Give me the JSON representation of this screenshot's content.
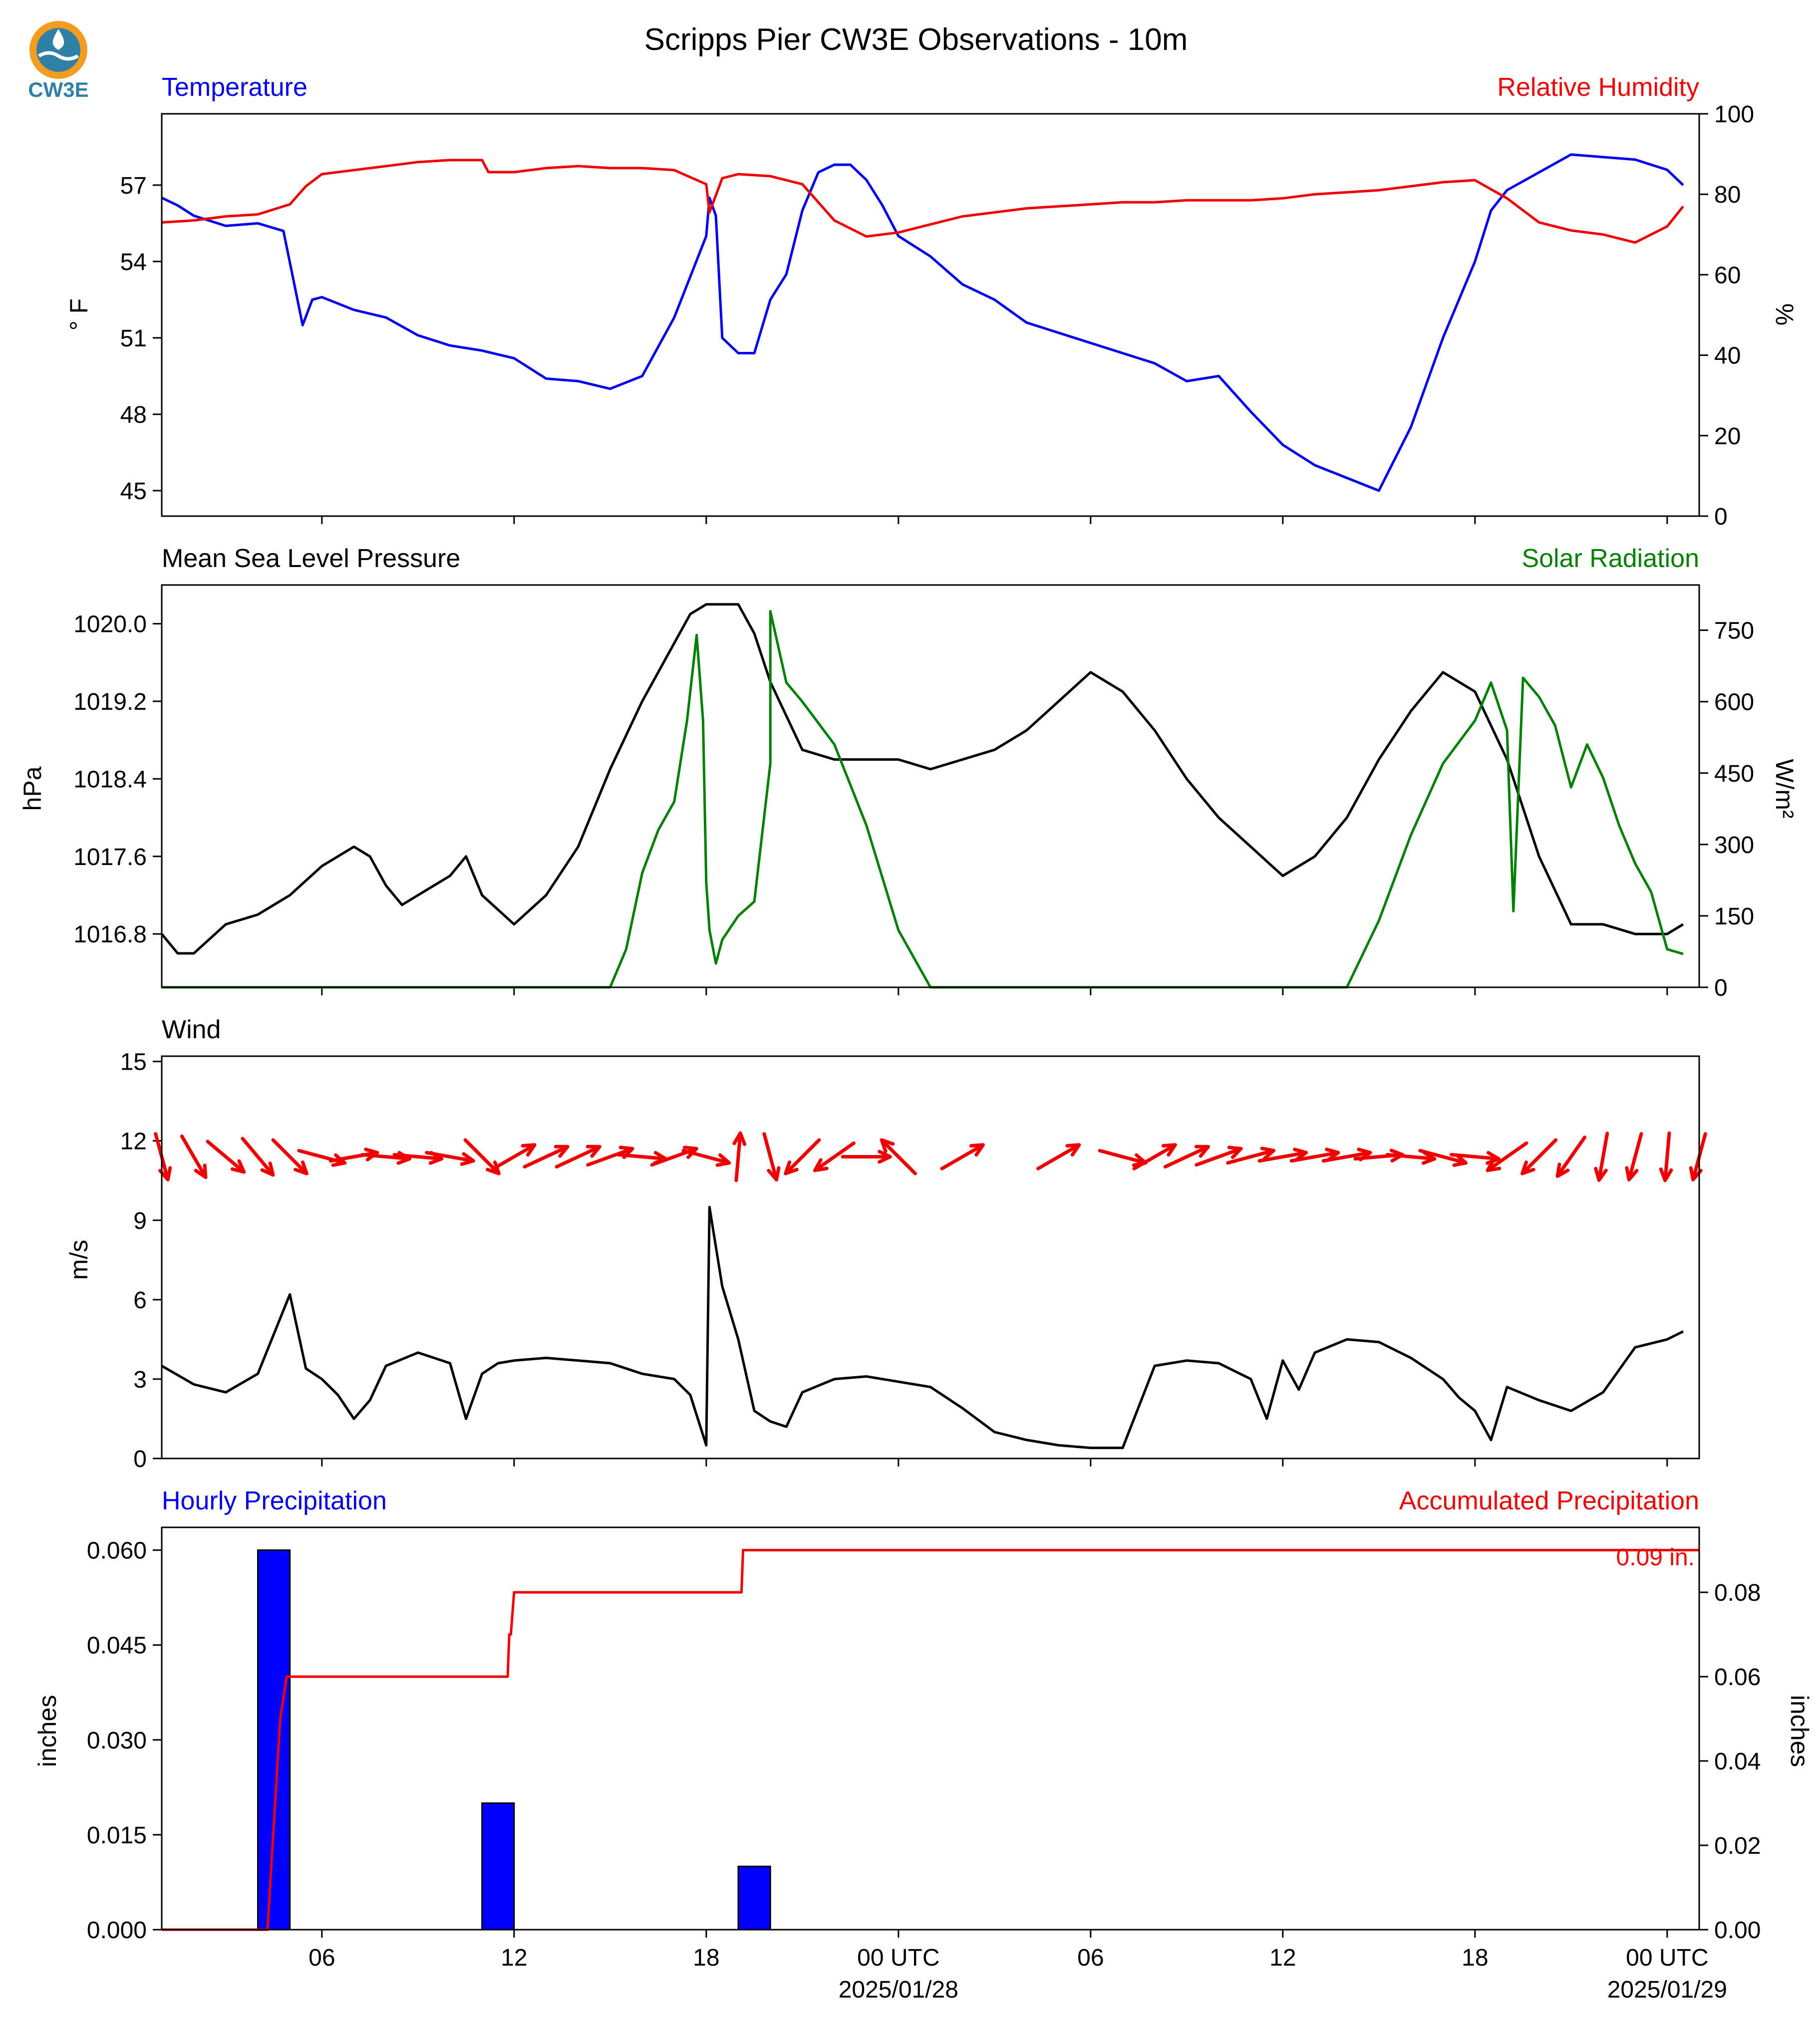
{
  "figure": {
    "title": "Scripps Pier CW3E Observations - 10m",
    "logo_text": "CW3E",
    "x_ticks": [
      "06",
      "12",
      "18",
      "00 UTC",
      "06",
      "12",
      "18",
      "00 UTC"
    ],
    "x_tick_hours": [
      6,
      12,
      18,
      24,
      30,
      36,
      42,
      48
    ],
    "date_labels": [
      {
        "hour": 24,
        "text": "2025/01/28"
      },
      {
        "hour": 48,
        "text": "2025/01/29"
      }
    ],
    "x_range_hours": [
      1,
      49
    ]
  },
  "colors": {
    "temperature": "#0000ee",
    "humidity": "#ee0000",
    "pressure": "#000000",
    "solar": "#008000",
    "wind_arrow": "#ee0000",
    "wind_speed": "#000000",
    "precip_bar": "#0000ff",
    "accum": "#ee0000"
  },
  "chart_data": [
    {
      "type": "line",
      "left_title": "Temperature",
      "right_title": "Relative Humidity",
      "ylabel": "° F",
      "ylabel_right": "%",
      "ylim": [
        44,
        59.8
      ],
      "ylim_right": [
        0,
        100
      ],
      "yticks": [
        45,
        48,
        51,
        54,
        57
      ],
      "yticks_right": [
        0,
        20,
        40,
        60,
        80,
        100
      ],
      "series": [
        {
          "name": "Temperature",
          "axis": "left",
          "x": [
            1,
            1.5,
            2,
            3,
            4,
            4.8,
            5.4,
            5.7,
            6,
            7,
            8,
            9,
            10,
            11,
            12,
            13,
            14,
            15,
            16,
            17,
            18,
            18.1,
            18.3,
            18.5,
            19,
            19.5,
            20,
            20.5,
            21,
            21.5,
            22,
            22.5,
            23,
            23.5,
            24,
            25,
            26,
            27,
            28,
            29,
            30,
            31,
            32,
            33,
            34,
            35,
            36,
            37,
            38,
            39,
            40,
            41,
            42,
            42.5,
            43,
            44,
            45,
            46,
            47,
            48,
            48.5
          ],
          "y": [
            56.5,
            56.2,
            55.8,
            55.4,
            55.5,
            55.2,
            51.5,
            52.5,
            52.6,
            52.1,
            51.8,
            51.1,
            50.7,
            50.5,
            50.2,
            49.4,
            49.3,
            49.0,
            49.5,
            51.8,
            55,
            56.5,
            55.8,
            51,
            50.4,
            50.4,
            52.5,
            53.5,
            56,
            57.5,
            57.8,
            57.8,
            57.2,
            56.2,
            55,
            54.2,
            53.1,
            52.5,
            51.6,
            51.2,
            50.8,
            50.4,
            50,
            49.3,
            49.5,
            48.1,
            46.8,
            46,
            45.5,
            45,
            47.5,
            51,
            54,
            56,
            56.8,
            57.5,
            58.2,
            58.1,
            58,
            57.6,
            57
          ]
        },
        {
          "name": "Relative Humidity",
          "axis": "right",
          "x": [
            1,
            2,
            3,
            4,
            5,
            5.5,
            6,
            7,
            8,
            9,
            10,
            11,
            11.2,
            12,
            13,
            14,
            15,
            16,
            17,
            18,
            18.1,
            18.5,
            19,
            20,
            21,
            22,
            23,
            24,
            25,
            26,
            27,
            28,
            29,
            30,
            31,
            32,
            33,
            34,
            35,
            36,
            37,
            38,
            39,
            40,
            41,
            42,
            43,
            44,
            45,
            46,
            47,
            48,
            48.5
          ],
          "y": [
            73,
            73.5,
            74.5,
            75,
            77.5,
            82,
            85,
            86,
            87,
            88,
            88.5,
            88.5,
            85.5,
            85.5,
            86.5,
            87,
            86.5,
            86.5,
            86,
            82.5,
            75.5,
            84,
            85,
            84.5,
            82.5,
            73.5,
            69.5,
            70.5,
            72.5,
            74.5,
            75.5,
            76.5,
            77,
            77.5,
            78,
            78,
            78.5,
            78.5,
            78.5,
            79,
            80,
            80.5,
            81,
            82,
            83,
            83.5,
            79,
            73,
            71,
            70,
            68,
            72,
            77
          ]
        }
      ]
    },
    {
      "type": "line",
      "left_title": "Mean Sea Level Pressure",
      "right_title": "Solar Radiation",
      "ylabel": "hPa",
      "ylabel_right": "W/m²",
      "ylim": [
        1016.25,
        1020.4
      ],
      "ylim_right": [
        0,
        845
      ],
      "yticks": [
        "1016.8",
        "1017.6",
        "1018.4",
        "1019.2",
        "1020.0"
      ],
      "yticks_right": [
        0,
        150,
        300,
        450,
        600,
        750
      ],
      "series": [
        {
          "name": "Mean Sea Level Pressure",
          "axis": "left",
          "x": [
            1,
            1.5,
            2,
            3,
            4,
            5,
            6,
            7,
            7.5,
            8,
            8.5,
            9,
            10,
            10.5,
            11,
            12,
            13,
            14,
            15,
            16,
            17,
            17.5,
            18,
            19,
            19.5,
            20,
            21,
            22,
            23,
            24,
            25,
            26,
            27,
            28,
            29,
            30,
            31,
            32,
            33,
            34,
            35,
            36,
            37,
            38,
            39,
            40,
            41,
            42,
            43,
            44,
            45,
            46,
            47,
            48,
            48.5
          ],
          "y": [
            1016.8,
            1016.6,
            1016.6,
            1016.9,
            1017.0,
            1017.2,
            1017.5,
            1017.7,
            1017.6,
            1017.3,
            1017.1,
            1017.2,
            1017.4,
            1017.6,
            1017.2,
            1016.9,
            1017.2,
            1017.7,
            1018.5,
            1019.2,
            1019.8,
            1020.1,
            1020.2,
            1020.2,
            1019.9,
            1019.4,
            1018.7,
            1018.6,
            1018.6,
            1018.6,
            1018.5,
            1018.6,
            1018.7,
            1018.9,
            1019.2,
            1019.5,
            1019.3,
            1018.9,
            1018.4,
            1018.0,
            1017.7,
            1017.4,
            1017.6,
            1018.0,
            1018.6,
            1019.1,
            1019.5,
            1019.3,
            1018.6,
            1017.6,
            1016.9,
            1016.9,
            1016.8,
            1016.8,
            1016.9
          ]
        },
        {
          "name": "Solar Radiation",
          "axis": "right",
          "x": [
            1,
            15,
            15.5,
            16,
            16.5,
            17,
            17.4,
            17.7,
            17.9,
            18,
            18.1,
            18.3,
            18.5,
            19,
            19.5,
            20,
            20,
            20.5,
            21,
            22,
            23,
            24,
            24.5,
            25,
            25.5,
            26,
            38,
            39,
            40,
            41,
            42,
            42.5,
            43,
            43.2,
            43.5,
            44,
            44.5,
            45,
            45.5,
            46,
            46.5,
            47,
            47.5,
            48,
            48.5
          ],
          "y": [
            0,
            0,
            80,
            240,
            330,
            390,
            560,
            740,
            560,
            220,
            120,
            50,
            100,
            150,
            180,
            470,
            790,
            640,
            600,
            510,
            340,
            120,
            60,
            0,
            0,
            0,
            0,
            140,
            320,
            470,
            560,
            640,
            540,
            160,
            650,
            610,
            550,
            420,
            510,
            440,
            340,
            260,
            200,
            80,
            70
          ]
        }
      ]
    },
    {
      "type": "line",
      "left_title": "Wind",
      "ylabel": "m/s",
      "ylim": [
        0,
        15.2
      ],
      "yticks": [
        0,
        3,
        6,
        9,
        12,
        15
      ],
      "series": [
        {
          "name": "Wind",
          "axis": "left",
          "x": [
            1,
            2,
            3,
            4,
            5,
            5.5,
            6,
            6.5,
            7,
            7.5,
            8,
            9,
            10,
            10.5,
            11,
            11.5,
            12,
            13,
            14,
            15,
            16,
            17,
            17.5,
            18,
            18.1,
            18.5,
            19,
            19.5,
            20,
            20.5,
            21,
            22,
            23,
            24,
            25,
            26,
            27,
            28,
            29,
            30,
            31,
            32,
            33,
            34,
            35,
            35.5,
            36,
            36.5,
            37,
            38,
            39,
            40,
            41,
            41.5,
            42,
            42.5,
            43,
            44,
            45,
            46,
            47,
            48,
            48.5
          ],
          "y": [
            3.5,
            2.8,
            2.5,
            3.2,
            6.2,
            3.4,
            3,
            2.4,
            1.5,
            2.2,
            3.5,
            4,
            3.6,
            1.5,
            3.2,
            3.6,
            3.7,
            3.8,
            3.7,
            3.6,
            3.2,
            3,
            2.4,
            0.5,
            9.5,
            6.5,
            4.5,
            1.8,
            1.4,
            1.2,
            2.5,
            3,
            3.1,
            2.9,
            2.7,
            1.9,
            1,
            0.7,
            0.5,
            0.4,
            0.4,
            3.5,
            3.7,
            3.6,
            3,
            1.5,
            3.7,
            2.6,
            4,
            4.5,
            4.4,
            3.8,
            3,
            2.3,
            1.8,
            0.7,
            2.7,
            2.2,
            1.8,
            2.5,
            4.2,
            4.5,
            4.8
          ]
        }
      ],
      "wind_arrows": {
        "unit": "direction the arrow points, degrees clockwise from north",
        "hours": [
          1,
          2,
          3,
          4,
          5,
          6,
          7,
          8,
          9,
          10,
          11,
          12,
          13,
          14,
          15,
          16,
          17,
          18,
          19,
          20,
          21,
          22,
          23,
          24,
          26,
          29,
          31,
          32,
          33,
          34,
          35,
          36,
          37,
          38,
          39,
          40,
          41,
          42,
          43,
          44,
          45,
          46,
          47,
          48,
          49
        ],
        "directions": [
          165,
          150,
          130,
          140,
          135,
          105,
          80,
          95,
          95,
          100,
          135,
          60,
          65,
          65,
          70,
          95,
          70,
          105,
          5,
          165,
          225,
          235,
          90,
          315,
          60,
          60,
          105,
          60,
          65,
          70,
          75,
          80,
          80,
          80,
          85,
          95,
          105,
          95,
          235,
          225,
          215,
          190,
          195,
          185,
          195
        ]
      }
    },
    {
      "type": "bar",
      "left_title": "Hourly Precipitation",
      "right_title": "Accumulated Precipitation",
      "ylabel": "inches",
      "ylabel_right": "inches",
      "ylim": [
        0,
        0.0636
      ],
      "ylim_right": [
        0,
        0.0954
      ],
      "yticks": [
        "0.000",
        "0.015",
        "0.030",
        "0.045",
        "0.060"
      ],
      "yticks_right": [
        "0.00",
        "0.02",
        "0.04",
        "0.06",
        "0.08"
      ],
      "bars": {
        "start_hours": [
          4,
          11,
          19
        ],
        "values": [
          0.06,
          0.02,
          0.01
        ]
      },
      "series": [
        {
          "name": "Accumulated Precipitation",
          "axis": "right",
          "x": [
            1,
            4.3,
            4.7,
            4.9,
            11.8,
            11.85,
            11.9,
            12,
            19.1,
            19.15,
            23.8,
            24,
            49
          ],
          "y": [
            0,
            0,
            0.05,
            0.06,
            0.06,
            0.07,
            0.07,
            0.08,
            0.08,
            0.09,
            0.09,
            0.09,
            0.09
          ]
        }
      ],
      "annotation": "0.09 in."
    }
  ]
}
